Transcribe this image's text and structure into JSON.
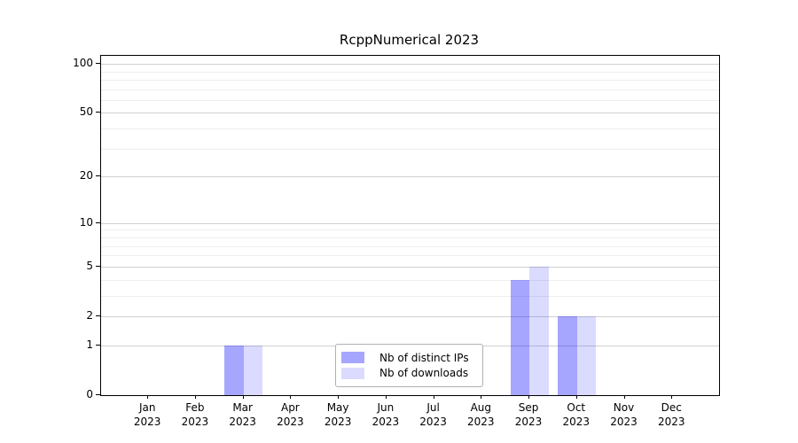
{
  "title": "RcppNumerical 2023",
  "chart_data": {
    "type": "bar",
    "title": "RcppNumerical 2023",
    "categories": [
      "Jan 2023",
      "Feb 2023",
      "Mar 2023",
      "Apr 2023",
      "May 2023",
      "Jun 2023",
      "Jul 2023",
      "Aug 2023",
      "Sep 2023",
      "Oct 2023",
      "Nov 2023",
      "Dec 2023"
    ],
    "series": [
      {
        "name": "Nb of distinct IPs",
        "color": "rgba(0,0,255,0.35)",
        "values": [
          0,
          0,
          1,
          0,
          0,
          0,
          0,
          0,
          4,
          2,
          0,
          0
        ]
      },
      {
        "name": "Nb of downloads",
        "color": "rgba(0,0,255,0.14)",
        "values": [
          0,
          0,
          1,
          0,
          0,
          0,
          0,
          0,
          5,
          2,
          0,
          0
        ]
      }
    ],
    "yscale": "log1p",
    "y_major_ticks": [
      0,
      1,
      2,
      5,
      10,
      20,
      50,
      100
    ],
    "y_minor_ticks": [
      3,
      4,
      6,
      7,
      8,
      9,
      30,
      40,
      60,
      70,
      80,
      90
    ],
    "ylim": [
      0,
      112
    ],
    "xlabel": "",
    "ylabel": "",
    "grid": true,
    "legend_position": "lower center",
    "colors": {
      "major_grid": "#d0d0d0",
      "minor_grid": "#eeeeee",
      "spine": "#000000",
      "background": "#ffffff"
    }
  }
}
